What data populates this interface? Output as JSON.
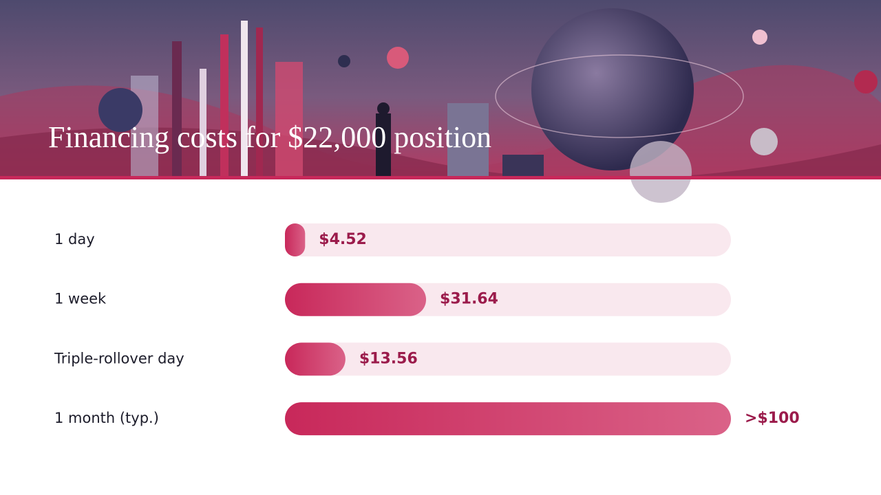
{
  "chart_data": {
    "type": "bar",
    "orientation": "horizontal",
    "title": "Financing costs for $22,000 position",
    "categories": [
      "1 day",
      "1 week",
      "Triple-rollover day",
      "1 month (typ.)"
    ],
    "values": [
      4.52,
      31.64,
      13.56,
      100
    ],
    "value_labels": [
      "$4.52",
      "$31.64",
      "$13.56",
      ">$100"
    ],
    "color": "#cc2e60",
    "xlim": [
      0,
      100
    ]
  }
}
